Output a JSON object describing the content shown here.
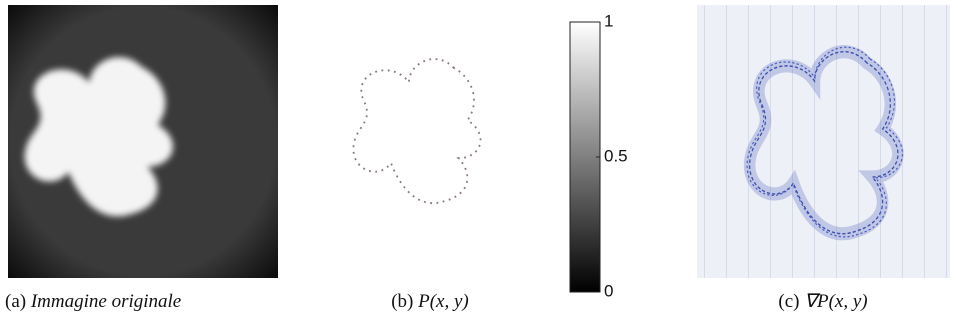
{
  "panels": [
    {
      "label": "(a)",
      "caption": "Immagine originale"
    },
    {
      "label": "(b)",
      "caption": "P(x, y)",
      "colorbar": {
        "lim": [
          0,
          1
        ],
        "ticks": [
          0,
          0.5,
          1
        ]
      }
    },
    {
      "label": "(c)",
      "caption": "∇P(x, y)"
    }
  ]
}
